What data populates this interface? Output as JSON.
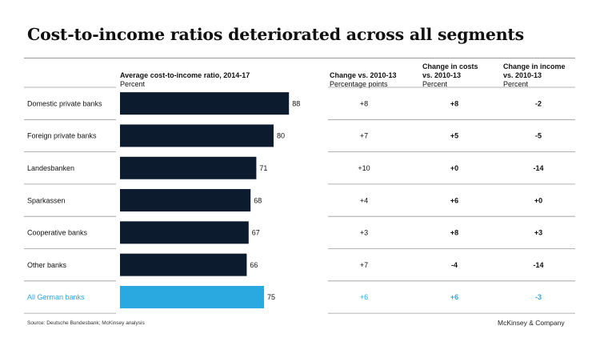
{
  "title": "Cost-to-income ratios deteriorated across all segments",
  "headers": {
    "bar_title": "Average cost-to-income ratio, 2014-17",
    "bar_unit": "Percent",
    "col1_title": "Change vs. 2010-13",
    "col1_unit": "Percentage points",
    "col2_title_1": "Change in costs",
    "col2_title_2": "vs. 2010-13",
    "col2_unit": "Percent",
    "col3_title_1": "Change in income",
    "col3_title_2": "vs. 2010-13",
    "col3_unit": "Percent"
  },
  "colors": {
    "bar": "#0d1b2e",
    "highlight": "#2aa8e0",
    "text": "#111111",
    "divider": "#9a9a9a"
  },
  "chart_data": {
    "type": "bar",
    "orientation": "horizontal",
    "categories": [
      "Domestic private banks",
      "Foreign private banks",
      "Landesbanken",
      "Sparkassen",
      "Cooperative banks",
      "Other banks",
      "All German banks"
    ],
    "values": [
      88,
      80,
      71,
      68,
      67,
      66,
      75
    ],
    "highlight_index": 6,
    "change_pp": [
      "+8",
      "+7",
      "+10",
      "+4",
      "+3",
      "+7",
      "+6"
    ],
    "change_costs": [
      "+8",
      "+5",
      "+0",
      "+6",
      "+8",
      "-4",
      "+6"
    ],
    "change_income": [
      "-2",
      "-5",
      "-14",
      "+0",
      "+3",
      "-14",
      "-3"
    ]
  },
  "footer": {
    "source": "Source: Deutsche Bundesbank; McKinsey analysis",
    "brand": "McKinsey & Company"
  }
}
